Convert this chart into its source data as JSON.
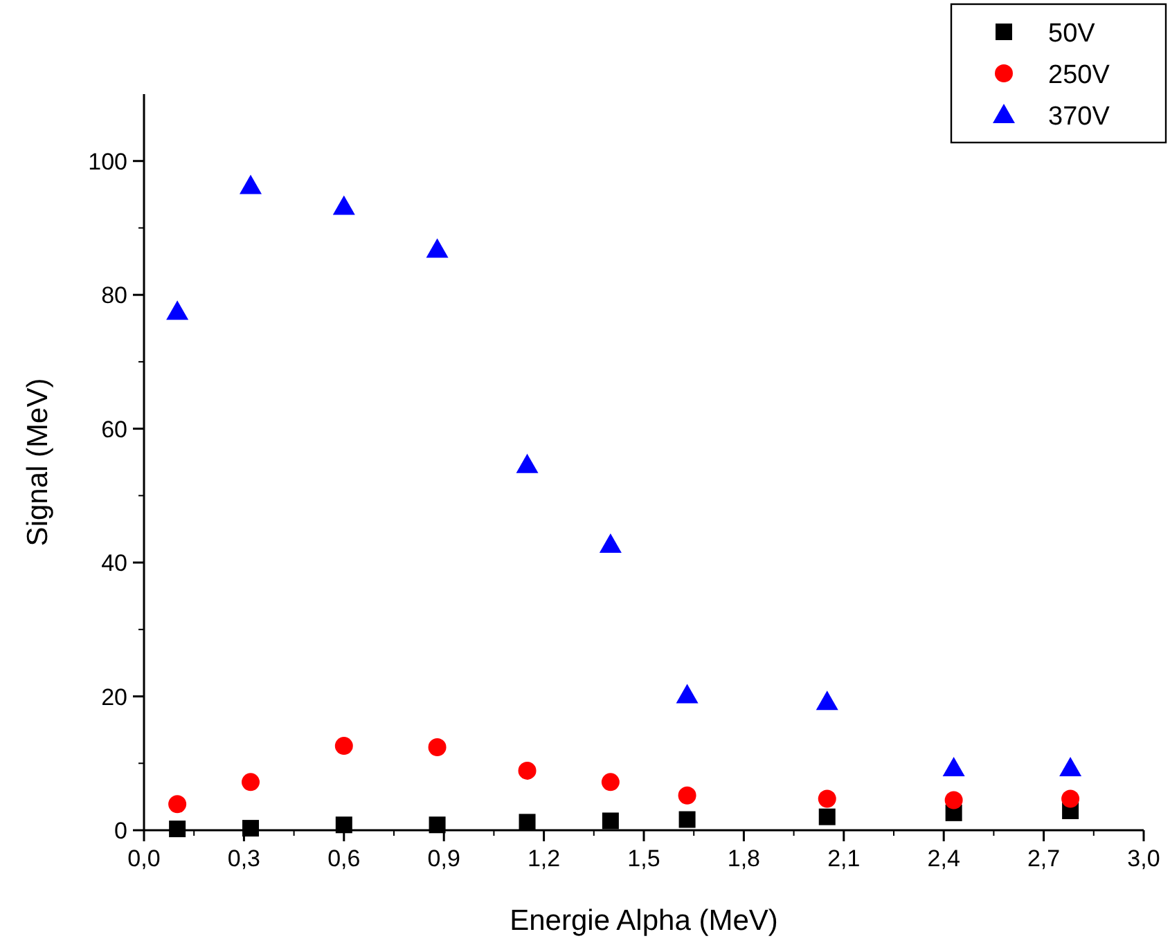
{
  "chart_data": {
    "type": "scatter",
    "xlabel": "Energie Alpha (MeV)",
    "ylabel": "Signal (MeV)",
    "xlim": [
      0,
      3
    ],
    "xticks": [
      {
        "value": 0,
        "label": "0,0"
      },
      {
        "value": 0.3,
        "label": "0,3"
      },
      {
        "value": 0.6,
        "label": "0,6"
      },
      {
        "value": 0.9,
        "label": "0,9"
      },
      {
        "value": 1.2,
        "label": "1,2"
      },
      {
        "value": 1.5,
        "label": "1,5"
      },
      {
        "value": 1.8,
        "label": "1,8"
      },
      {
        "value": 2.1,
        "label": "2,1"
      },
      {
        "value": 2.4,
        "label": "2,4"
      },
      {
        "value": 2.7,
        "label": "2,7"
      },
      {
        "value": 3,
        "label": "3,0"
      }
    ],
    "ylim": [
      0,
      110
    ],
    "yticks": [
      0,
      20,
      40,
      60,
      80,
      100
    ],
    "x": [
      0.1,
      0.32,
      0.6,
      0.88,
      1.15,
      1.4,
      1.63,
      2.05,
      2.43,
      2.78
    ],
    "legend": "top right",
    "grid": false,
    "series": [
      {
        "name": "50V",
        "color": "#000000",
        "marker": "square",
        "values": [
          0.2,
          0.3,
          0.8,
          0.8,
          1.2,
          1.4,
          1.6,
          2.0,
          2.6,
          2.9
        ]
      },
      {
        "name": "250V",
        "color": "#ff0000",
        "marker": "circle",
        "values": [
          3.9,
          7.2,
          12.6,
          12.4,
          8.9,
          7.2,
          5.2,
          4.7,
          4.5,
          4.7
        ]
      },
      {
        "name": "370V",
        "color": "#0000ff",
        "marker": "triangle",
        "values": [
          77.5,
          96.3,
          93.2,
          86.8,
          54.6,
          42.7,
          20.2,
          19.2,
          9.3,
          9.3
        ]
      }
    ]
  }
}
